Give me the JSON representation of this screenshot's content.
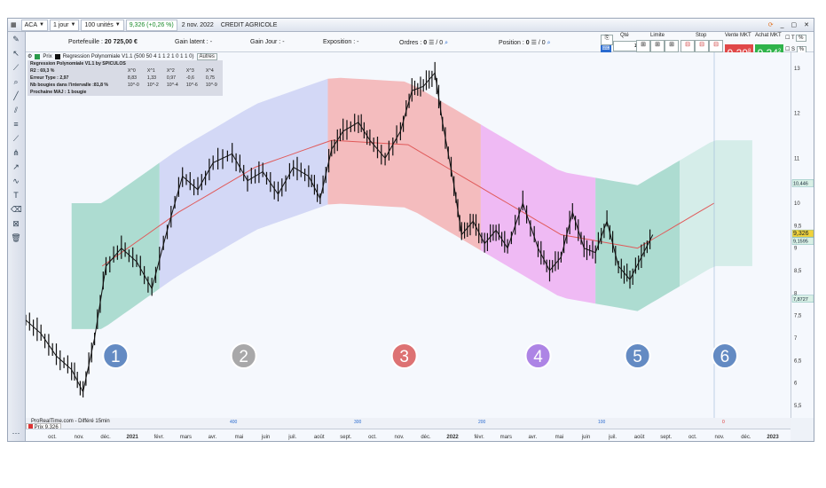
{
  "toolbar": {
    "symbol": "ACA",
    "timeframe": "1 jour",
    "units": "100 unités",
    "price_change": "9,326 (+0,26 %)",
    "date": "2 nov. 2022",
    "instrument_name": "CREDIT AGRICOLE"
  },
  "account": {
    "portfolio_label": "Portefeuille :",
    "portfolio_value": "20 725,00 €",
    "unrealized_label": "Gain latent :",
    "unrealized_value": "-",
    "daily_label": "Gain Jour :",
    "daily_value": "-",
    "exposure_label": "Exposition :",
    "exposure_value": "-",
    "orders_label": "Ordres :",
    "orders_value": "0",
    "orders_sep": "/ 0",
    "position_label": "Position :",
    "position_value": "0",
    "position_sep": "/ 0"
  },
  "order_panel": {
    "qty_label": "Qté",
    "qty_value": "1",
    "limit_label": "Limite",
    "stop_label": "Stop",
    "sell_label": "Vente MKT",
    "buy_label": "Achat MKT",
    "sell_price": "9,29",
    "buy_price": "9,34",
    "sell_sup": "8",
    "buy_sup": "2",
    "t_label": "T",
    "s_label": "S",
    "pct": "%"
  },
  "legend": {
    "price_tag": "Prix",
    "indicator": "Regression Polynomiale V1.1 (500 50 4 1 1 2 1 0 1 1 0)",
    "others_button": "Autres",
    "subtitle": "Regression Polynomiale V1.1 by SPICULOS",
    "stats_header": [
      "X^0",
      "X^1",
      "X^2",
      "X^3",
      "X^4"
    ],
    "rows": [
      {
        "label": "R2 : 69,3 %",
        "values": [
          "",
          "",
          "",
          "",
          ""
        ]
      },
      {
        "label": "Erreur Type : 2,97",
        "values": [
          "8,83",
          "1,33",
          "0,97",
          "-0,6",
          "0,75"
        ]
      },
      {
        "label": "Nb bougies dans l'intervalle :81,8 %",
        "values": [
          "10^-0",
          "10^-2",
          "10^-4",
          "10^-6",
          "10^-9"
        ]
      },
      {
        "label": "Prochaine MAJ : 1 bougie",
        "values": [
          "",
          "",
          "",
          "",
          ""
        ]
      }
    ]
  },
  "footer": {
    "source": "ProRealTime.com - Différé 15min",
    "price_tab": "Prix 9,326",
    "vol_marks": [
      "400",
      "300",
      "200",
      "100",
      "0"
    ]
  },
  "chart_data": {
    "type": "line",
    "x_labels": [
      "oct.",
      "nov.",
      "déc.",
      "2021",
      "févr.",
      "mars",
      "avr.",
      "mai",
      "juin",
      "juil.",
      "août",
      "sept.",
      "oct.",
      "nov.",
      "déc.",
      "2022",
      "févr.",
      "mars",
      "avr.",
      "mai",
      "juin",
      "juil.",
      "août",
      "sept.",
      "oct.",
      "nov.",
      "déc.",
      "2023"
    ],
    "y_ticks": [
      "13",
      "12",
      "11",
      "10",
      "9,5",
      "9",
      "8,5",
      "8",
      "7,5",
      "7",
      "6,5",
      "6",
      "5,5"
    ],
    "ylim": [
      5.5,
      13
    ],
    "price_labels": {
      "current": "9,326",
      "upper": "10,446",
      "mid": "9,1595",
      "lower": "7,8727"
    },
    "zones": [
      {
        "label": "1",
        "color": "#8fd0bd",
        "x_range": [
          0.06,
          0.175
        ]
      },
      {
        "label": "2",
        "color": "#c5cbf2",
        "x_range": [
          0.175,
          0.395
        ]
      },
      {
        "label": "3",
        "color": "#f3a3a3",
        "x_range": [
          0.395,
          0.595
        ]
      },
      {
        "label": "4",
        "color": "#ec9ff0",
        "x_range": [
          0.595,
          0.745
        ]
      },
      {
        "label": "5",
        "color": "#8fd0bd",
        "x_range": [
          0.745,
          0.855
        ]
      },
      {
        "label": "6",
        "color": "#b9e3d9",
        "x_range": [
          0.855,
          0.95
        ]
      }
    ],
    "label_colors": [
      "#4a78b8",
      "#9a9a9a",
      "#d85a5a",
      "#a070e0",
      "#4a78b8",
      "#4a78b8"
    ],
    "price_series": [
      {
        "x": 0.0,
        "y": 7.4
      },
      {
        "x": 0.02,
        "y": 7.1
      },
      {
        "x": 0.04,
        "y": 6.6
      },
      {
        "x": 0.06,
        "y": 6.3
      },
      {
        "x": 0.075,
        "y": 5.8
      },
      {
        "x": 0.09,
        "y": 7.0
      },
      {
        "x": 0.105,
        "y": 8.6
      },
      {
        "x": 0.125,
        "y": 9.0
      },
      {
        "x": 0.145,
        "y": 8.7
      },
      {
        "x": 0.165,
        "y": 8.1
      },
      {
        "x": 0.185,
        "y": 9.4
      },
      {
        "x": 0.205,
        "y": 10.6
      },
      {
        "x": 0.225,
        "y": 10.3
      },
      {
        "x": 0.245,
        "y": 10.9
      },
      {
        "x": 0.27,
        "y": 11.1
      },
      {
        "x": 0.29,
        "y": 10.5
      },
      {
        "x": 0.31,
        "y": 10.7
      },
      {
        "x": 0.33,
        "y": 10.2
      },
      {
        "x": 0.35,
        "y": 10.8
      },
      {
        "x": 0.37,
        "y": 10.6
      },
      {
        "x": 0.385,
        "y": 10.1
      },
      {
        "x": 0.4,
        "y": 11.2
      },
      {
        "x": 0.415,
        "y": 11.6
      },
      {
        "x": 0.435,
        "y": 11.8
      },
      {
        "x": 0.45,
        "y": 11.4
      },
      {
        "x": 0.47,
        "y": 11.0
      },
      {
        "x": 0.49,
        "y": 11.6
      },
      {
        "x": 0.505,
        "y": 12.5
      },
      {
        "x": 0.52,
        "y": 12.6
      },
      {
        "x": 0.535,
        "y": 12.9
      },
      {
        "x": 0.545,
        "y": 11.8
      },
      {
        "x": 0.56,
        "y": 10.4
      },
      {
        "x": 0.57,
        "y": 9.3
      },
      {
        "x": 0.585,
        "y": 9.6
      },
      {
        "x": 0.6,
        "y": 9.1
      },
      {
        "x": 0.615,
        "y": 9.4
      },
      {
        "x": 0.63,
        "y": 9.0
      },
      {
        "x": 0.65,
        "y": 10.0
      },
      {
        "x": 0.67,
        "y": 9.0
      },
      {
        "x": 0.685,
        "y": 8.5
      },
      {
        "x": 0.7,
        "y": 8.8
      },
      {
        "x": 0.715,
        "y": 9.8
      },
      {
        "x": 0.73,
        "y": 9.0
      },
      {
        "x": 0.745,
        "y": 8.9
      },
      {
        "x": 0.76,
        "y": 9.6
      },
      {
        "x": 0.775,
        "y": 8.6
      },
      {
        "x": 0.79,
        "y": 8.3
      },
      {
        "x": 0.805,
        "y": 8.8
      },
      {
        "x": 0.82,
        "y": 9.3
      }
    ],
    "regression_series": [
      {
        "x": 0.1,
        "y": 8.6
      },
      {
        "x": 0.2,
        "y": 9.8
      },
      {
        "x": 0.3,
        "y": 10.8
      },
      {
        "x": 0.4,
        "y": 11.4
      },
      {
        "x": 0.5,
        "y": 11.3
      },
      {
        "x": 0.6,
        "y": 10.3
      },
      {
        "x": 0.7,
        "y": 9.3
      },
      {
        "x": 0.8,
        "y": 9.0
      },
      {
        "x": 0.9,
        "y": 10.0
      }
    ]
  }
}
